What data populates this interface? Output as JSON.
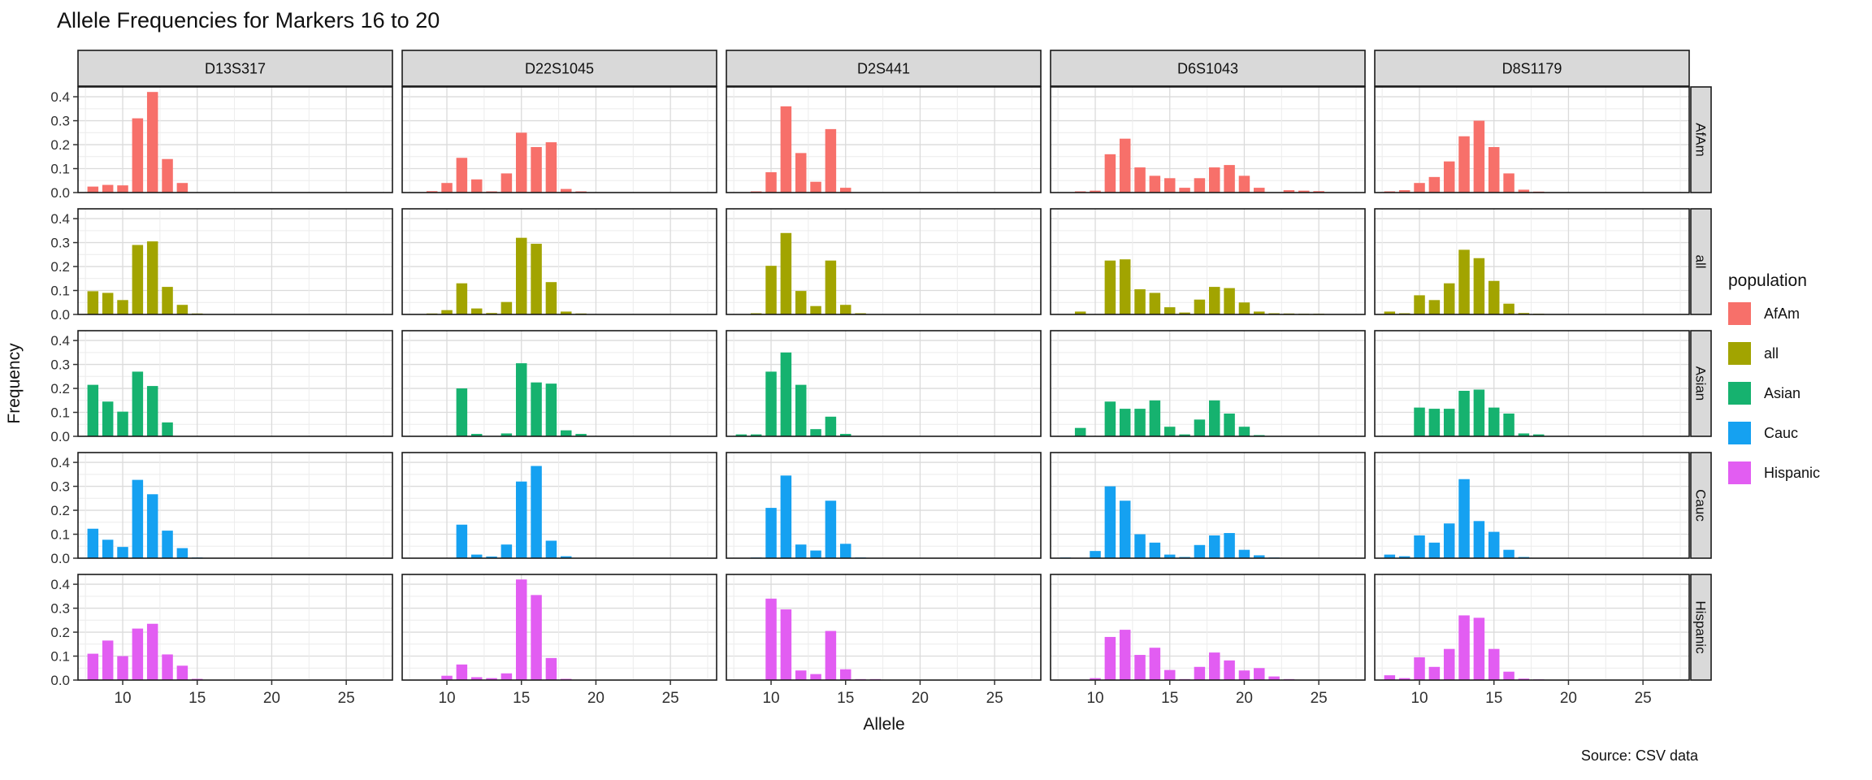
{
  "chart_data": {
    "type": "bar",
    "title": "Allele Frequencies for Markers 16 to 20",
    "xlabel": "Allele",
    "ylabel": "Frequency",
    "caption": "Source: CSV data",
    "legend": {
      "title": "population",
      "entries": [
        {
          "label": "AfAm",
          "color": "#F7706A"
        },
        {
          "label": "all",
          "color": "#A2A400"
        },
        {
          "label": "Asian",
          "color": "#16B26F"
        },
        {
          "label": "Cauc",
          "color": "#15A1F1"
        },
        {
          "label": "Hispanic",
          "color": "#E25DF2"
        }
      ]
    },
    "x_ticks": [
      "10",
      "15",
      "20",
      "25"
    ],
    "y_ticks": [
      "0.0",
      "0.1",
      "0.2",
      "0.3",
      "0.4"
    ],
    "x_range": [
      7.0,
      28.1
    ],
    "y_range": [
      0,
      0.441
    ],
    "col_facets": [
      "D13S317",
      "D22S1045",
      "D2S441",
      "D6S1043",
      "D8S1179"
    ],
    "row_facets": [
      "AfAm",
      "all",
      "Asian",
      "Cauc",
      "Hispanic"
    ],
    "bars": {
      "D13S317": {
        "AfAm": [
          [
            8,
            0.025
          ],
          [
            9,
            0.032
          ],
          [
            10,
            0.03
          ],
          [
            11,
            0.31
          ],
          [
            12,
            0.42
          ],
          [
            13,
            0.14
          ],
          [
            14,
            0.04
          ]
        ],
        "all": [
          [
            8,
            0.097
          ],
          [
            9,
            0.09
          ],
          [
            10,
            0.06
          ],
          [
            11,
            0.29
          ],
          [
            12,
            0.305
          ],
          [
            13,
            0.115
          ],
          [
            14,
            0.04
          ],
          [
            15,
            0.004
          ]
        ],
        "Asian": [
          [
            8,
            0.215
          ],
          [
            9,
            0.145
          ],
          [
            10,
            0.103
          ],
          [
            11,
            0.27
          ],
          [
            12,
            0.21
          ],
          [
            13,
            0.058
          ]
        ],
        "Cauc": [
          [
            8,
            0.123
          ],
          [
            9,
            0.077
          ],
          [
            10,
            0.047
          ],
          [
            11,
            0.327
          ],
          [
            12,
            0.267
          ],
          [
            13,
            0.115
          ],
          [
            14,
            0.042
          ],
          [
            15,
            0.003
          ]
        ],
        "Hispanic": [
          [
            8,
            0.11
          ],
          [
            9,
            0.165
          ],
          [
            10,
            0.1
          ],
          [
            11,
            0.215
          ],
          [
            12,
            0.235
          ],
          [
            13,
            0.107
          ],
          [
            14,
            0.06
          ],
          [
            15,
            0.005
          ]
        ]
      },
      "D22S1045": {
        "AfAm": [
          [
            9,
            0.006
          ],
          [
            10,
            0.04
          ],
          [
            11,
            0.145
          ],
          [
            12,
            0.055
          ],
          [
            13,
            0.005
          ],
          [
            14,
            0.08
          ],
          [
            15,
            0.25
          ],
          [
            16,
            0.19
          ],
          [
            17,
            0.21
          ],
          [
            18,
            0.015
          ],
          [
            19,
            0.005
          ]
        ],
        "all": [
          [
            9,
            0.004
          ],
          [
            10,
            0.018
          ],
          [
            11,
            0.13
          ],
          [
            12,
            0.025
          ],
          [
            13,
            0.006
          ],
          [
            14,
            0.052
          ],
          [
            15,
            0.32
          ],
          [
            16,
            0.295
          ],
          [
            17,
            0.135
          ],
          [
            18,
            0.012
          ],
          [
            19,
            0.004
          ]
        ],
        "Asian": [
          [
            11,
            0.2
          ],
          [
            12,
            0.01
          ],
          [
            14,
            0.012
          ],
          [
            15,
            0.305
          ],
          [
            16,
            0.225
          ],
          [
            17,
            0.22
          ],
          [
            18,
            0.025
          ],
          [
            19,
            0.01
          ]
        ],
        "Cauc": [
          [
            11,
            0.14
          ],
          [
            12,
            0.015
          ],
          [
            13,
            0.007
          ],
          [
            14,
            0.057
          ],
          [
            15,
            0.32
          ],
          [
            16,
            0.385
          ],
          [
            17,
            0.073
          ],
          [
            18,
            0.008
          ]
        ],
        "Hispanic": [
          [
            10,
            0.018
          ],
          [
            11,
            0.065
          ],
          [
            12,
            0.012
          ],
          [
            13,
            0.008
          ],
          [
            14,
            0.028
          ],
          [
            15,
            0.42
          ],
          [
            16,
            0.355
          ],
          [
            17,
            0.092
          ],
          [
            18,
            0.005
          ]
        ]
      },
      "D2S441": {
        "AfAm": [
          [
            9,
            0.005
          ],
          [
            10,
            0.085
          ],
          [
            11,
            0.36
          ],
          [
            12,
            0.165
          ],
          [
            13,
            0.045
          ],
          [
            14,
            0.265
          ],
          [
            15,
            0.02
          ]
        ],
        "all": [
          [
            9,
            0.005
          ],
          [
            10,
            0.203
          ],
          [
            11,
            0.34
          ],
          [
            12,
            0.098
          ],
          [
            13,
            0.035
          ],
          [
            14,
            0.225
          ],
          [
            15,
            0.04
          ],
          [
            16,
            0.005
          ]
        ],
        "Asian": [
          [
            8,
            0.008
          ],
          [
            9,
            0.008
          ],
          [
            10,
            0.27
          ],
          [
            11,
            0.35
          ],
          [
            12,
            0.215
          ],
          [
            13,
            0.03
          ],
          [
            14,
            0.082
          ],
          [
            15,
            0.01
          ]
        ],
        "Cauc": [
          [
            9,
            0.003
          ],
          [
            10,
            0.21
          ],
          [
            11,
            0.345
          ],
          [
            12,
            0.057
          ],
          [
            13,
            0.032
          ],
          [
            14,
            0.24
          ],
          [
            15,
            0.06
          ],
          [
            16,
            0.003
          ]
        ],
        "Hispanic": [
          [
            10,
            0.34
          ],
          [
            11,
            0.295
          ],
          [
            12,
            0.04
          ],
          [
            13,
            0.025
          ],
          [
            14,
            0.205
          ],
          [
            15,
            0.045
          ],
          [
            16,
            0.004
          ],
          [
            17,
            0.004
          ]
        ]
      },
      "D6S1043": {
        "AfAm": [
          [
            9,
            0.005
          ],
          [
            10,
            0.008
          ],
          [
            11,
            0.16
          ],
          [
            12,
            0.225
          ],
          [
            13,
            0.105
          ],
          [
            14,
            0.07
          ],
          [
            15,
            0.06
          ],
          [
            16,
            0.02
          ],
          [
            17,
            0.06
          ],
          [
            18,
            0.105
          ],
          [
            19,
            0.115
          ],
          [
            20,
            0.07
          ],
          [
            21,
            0.02
          ],
          [
            23,
            0.01
          ],
          [
            24,
            0.008
          ],
          [
            25,
            0.006
          ]
        ],
        "all": [
          [
            9,
            0.012
          ],
          [
            11,
            0.225
          ],
          [
            12,
            0.23
          ],
          [
            13,
            0.105
          ],
          [
            14,
            0.09
          ],
          [
            15,
            0.03
          ],
          [
            16,
            0.008
          ],
          [
            17,
            0.062
          ],
          [
            18,
            0.115
          ],
          [
            19,
            0.11
          ],
          [
            20,
            0.05
          ],
          [
            21,
            0.012
          ],
          [
            22,
            0.005
          ],
          [
            23,
            0.004
          ],
          [
            24,
            0.003
          ],
          [
            25,
            0.003
          ]
        ],
        "Asian": [
          [
            9,
            0.035
          ],
          [
            11,
            0.145
          ],
          [
            12,
            0.115
          ],
          [
            13,
            0.115
          ],
          [
            14,
            0.15
          ],
          [
            15,
            0.04
          ],
          [
            16,
            0.008
          ],
          [
            17,
            0.07
          ],
          [
            18,
            0.15
          ],
          [
            19,
            0.095
          ],
          [
            20,
            0.04
          ],
          [
            21,
            0.005
          ]
        ],
        "Cauc": [
          [
            8,
            0.003
          ],
          [
            10,
            0.03
          ],
          [
            11,
            0.3
          ],
          [
            12,
            0.24
          ],
          [
            13,
            0.1
          ],
          [
            14,
            0.065
          ],
          [
            15,
            0.015
          ],
          [
            16,
            0.005
          ],
          [
            17,
            0.055
          ],
          [
            18,
            0.095
          ],
          [
            19,
            0.105
          ],
          [
            20,
            0.035
          ],
          [
            21,
            0.012
          ],
          [
            22,
            0.003
          ]
        ],
        "Hispanic": [
          [
            10,
            0.008
          ],
          [
            11,
            0.18
          ],
          [
            12,
            0.21
          ],
          [
            13,
            0.105
          ],
          [
            14,
            0.135
          ],
          [
            15,
            0.042
          ],
          [
            16,
            0.004
          ],
          [
            17,
            0.055
          ],
          [
            18,
            0.115
          ],
          [
            19,
            0.082
          ],
          [
            20,
            0.04
          ],
          [
            21,
            0.05
          ],
          [
            22,
            0.015
          ],
          [
            23,
            0.004
          ]
        ]
      },
      "D8S1179": {
        "AfAm": [
          [
            8,
            0.005
          ],
          [
            9,
            0.01
          ],
          [
            10,
            0.04
          ],
          [
            11,
            0.065
          ],
          [
            12,
            0.13
          ],
          [
            13,
            0.235
          ],
          [
            14,
            0.3
          ],
          [
            15,
            0.19
          ],
          [
            16,
            0.08
          ],
          [
            17,
            0.012
          ],
          [
            18,
            0.004
          ]
        ],
        "all": [
          [
            8,
            0.012
          ],
          [
            9,
            0.005
          ],
          [
            10,
            0.08
          ],
          [
            11,
            0.06
          ],
          [
            12,
            0.13
          ],
          [
            13,
            0.27
          ],
          [
            14,
            0.235
          ],
          [
            15,
            0.14
          ],
          [
            16,
            0.045
          ],
          [
            17,
            0.006
          ],
          [
            18,
            0.003
          ]
        ],
        "Asian": [
          [
            10,
            0.12
          ],
          [
            11,
            0.115
          ],
          [
            12,
            0.115
          ],
          [
            13,
            0.19
          ],
          [
            14,
            0.195
          ],
          [
            15,
            0.12
          ],
          [
            16,
            0.095
          ],
          [
            17,
            0.012
          ],
          [
            18,
            0.008
          ]
        ],
        "Cauc": [
          [
            8,
            0.015
          ],
          [
            9,
            0.008
          ],
          [
            10,
            0.095
          ],
          [
            11,
            0.065
          ],
          [
            12,
            0.145
          ],
          [
            13,
            0.33
          ],
          [
            14,
            0.155
          ],
          [
            15,
            0.11
          ],
          [
            16,
            0.035
          ],
          [
            17,
            0.005
          ]
        ],
        "Hispanic": [
          [
            8,
            0.02
          ],
          [
            9,
            0.008
          ],
          [
            10,
            0.095
          ],
          [
            11,
            0.055
          ],
          [
            12,
            0.13
          ],
          [
            13,
            0.27
          ],
          [
            14,
            0.26
          ],
          [
            15,
            0.13
          ],
          [
            16,
            0.035
          ],
          [
            17,
            0.006
          ],
          [
            18,
            0.003
          ]
        ]
      }
    },
    "styles": {
      "strip_fill": "#D9D9D9",
      "panel_border": "#1A1A1A",
      "grid_major": "#DBDBDB",
      "grid_minor": "#ECECEC",
      "tick_color": "#333333",
      "axis_text": "#303030",
      "strip_text": "#111111"
    }
  }
}
